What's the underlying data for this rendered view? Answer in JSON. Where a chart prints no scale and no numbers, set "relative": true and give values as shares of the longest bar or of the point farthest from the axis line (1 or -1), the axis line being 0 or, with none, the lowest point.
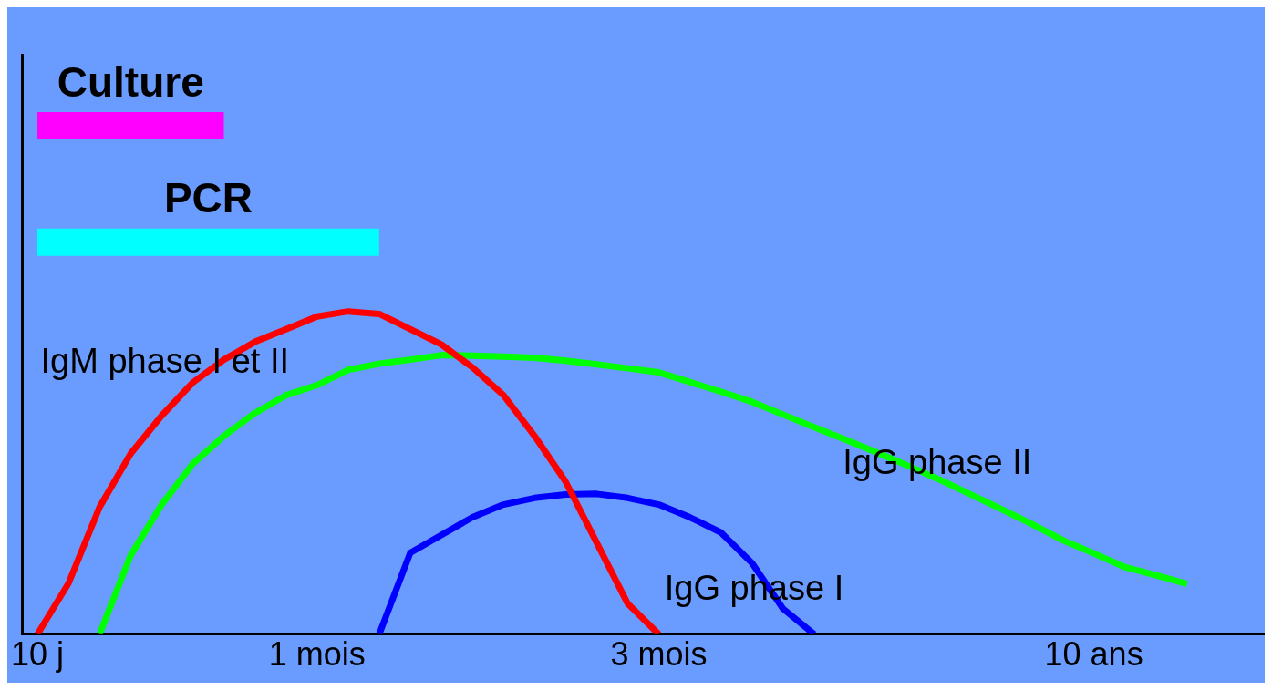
{
  "chart_data": {
    "type": "line",
    "relative": true,
    "marker": "none",
    "legend": false,
    "grid": false,
    "categories": [
      "10 j",
      null,
      null,
      null,
      null,
      null,
      null,
      null,
      null,
      "1 mois",
      null,
      null,
      null,
      null,
      null,
      null,
      null,
      null,
      null,
      null,
      "3 mois",
      null,
      null,
      null,
      null,
      null,
      null,
      null,
      null,
      null,
      null,
      null,
      null,
      null,
      "10 ans",
      null,
      null,
      null,
      null,
      null
    ],
    "series": [
      {
        "name": "Culture",
        "color": "#ff00ff",
        "values": [
          1,
          1,
          1,
          1,
          1,
          1,
          1,
          null,
          null,
          null,
          null,
          null,
          null,
          null,
          null,
          null,
          null,
          null,
          null,
          null,
          null,
          null,
          null,
          null,
          null,
          null,
          null,
          null,
          null,
          null,
          null,
          null,
          null,
          null,
          null,
          null,
          null,
          null,
          null,
          null
        ]
      },
      {
        "name": "PCR",
        "color": "#00ffff",
        "values": [
          0.771,
          0.771,
          0.771,
          0.771,
          0.771,
          0.771,
          0.771,
          0.771,
          0.771,
          0.771,
          0.771,
          0.771,
          null,
          null,
          null,
          null,
          null,
          null,
          null,
          null,
          null,
          null,
          null,
          null,
          null,
          null,
          null,
          null,
          null,
          null,
          null,
          null,
          null,
          null,
          null,
          null,
          null,
          null,
          null,
          null
        ]
      },
      {
        "name": "IgM phase I et II",
        "color": "#ff0000",
        "values": [
          0,
          0.1,
          0.25,
          0.355,
          0.43,
          0.495,
          0.54,
          0.575,
          0.6,
          0.625,
          0.635,
          0.63,
          0.6,
          0.57,
          0.525,
          0.47,
          0.39,
          0.3,
          0.18,
          0.06,
          0,
          null,
          null,
          null,
          null,
          null,
          null,
          null,
          null,
          null,
          null,
          null,
          null,
          null,
          null,
          null,
          null,
          null,
          null,
          null
        ]
      },
      {
        "name": "IgG phase II",
        "color": "#00ff00",
        "values": [
          null,
          null,
          0,
          0.155,
          0.255,
          0.335,
          0.39,
          0.435,
          0.47,
          0.49,
          0.52,
          0.532,
          0.54,
          0.549,
          0.548,
          0.546,
          0.544,
          0.538,
          0.531,
          0.523,
          0.515,
          0.496,
          0.477,
          0.457,
          0.432,
          0.407,
          0.383,
          0.358,
          0.332,
          0.305,
          0.276,
          0.247,
          0.217,
          0.185,
          0.159,
          0.132,
          0.116,
          0.099,
          null,
          null
        ]
      },
      {
        "name": "IgG phase I",
        "color": "#0000ff",
        "values": [
          null,
          null,
          null,
          null,
          null,
          null,
          null,
          null,
          null,
          null,
          null,
          0,
          0.16,
          0.195,
          0.23,
          0.255,
          0.268,
          0.275,
          0.276,
          0.268,
          0.255,
          0.23,
          0.2,
          0.14,
          0.05,
          0,
          null,
          null,
          null,
          null,
          null,
          null,
          null,
          null,
          null,
          null,
          null,
          null,
          null,
          null
        ]
      }
    ]
  }
}
